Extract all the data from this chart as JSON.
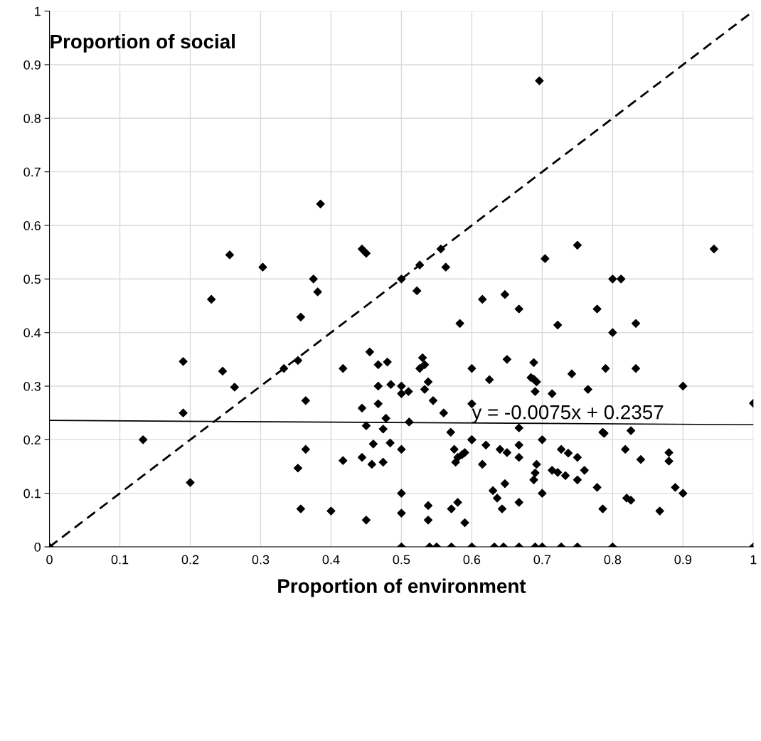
{
  "chart_data": {
    "type": "scatter",
    "xlabel": "Proportion of environment",
    "ylabel": "Proportion of social",
    "xlim": [
      0,
      1
    ],
    "ylim": [
      0,
      1
    ],
    "xticks": [
      0,
      0.1,
      0.2,
      0.3,
      0.4,
      0.5,
      0.6,
      0.7,
      0.8,
      0.9,
      1
    ],
    "yticks": [
      0,
      0.1,
      0.2,
      0.3,
      0.4,
      0.5,
      0.6,
      0.7,
      0.8,
      0.9,
      1
    ],
    "grid": true,
    "marker": "diamond",
    "legend": false,
    "series": [
      {
        "color": "#000000",
        "x": [
          0,
          0.133,
          0.19,
          0.19,
          0.2,
          0.23,
          0.246,
          0.256,
          0.263,
          0.303,
          0.333,
          0.353,
          0.353,
          0.357,
          0.357,
          0.364,
          0.364,
          0.375,
          0.381,
          0.385,
          0.4,
          0.417,
          0.417,
          0.444,
          0.444,
          0.444,
          0.45,
          0.45,
          0.45,
          0.455,
          0.458,
          0.46,
          0.467,
          0.467,
          0.467,
          0.474,
          0.474,
          0.478,
          0.48,
          0.484,
          0.485,
          0.5,
          0.5,
          0.5,
          0.5,
          0.5,
          0.5,
          0.5,
          0.51,
          0.511,
          0.522,
          0.526,
          0.526,
          0.53,
          0.533,
          0.533,
          0.538,
          0.538,
          0.538,
          0.54,
          0.545,
          0.55,
          0.556,
          0.56,
          0.563,
          0.57,
          0.571,
          0.571,
          0.575,
          0.577,
          0.58,
          0.58,
          0.583,
          0.586,
          0.59,
          0.59,
          0.6,
          0.6,
          0.6,
          0.6,
          0.6,
          0.615,
          0.615,
          0.62,
          0.625,
          0.63,
          0.632,
          0.636,
          0.64,
          0.643,
          0.645,
          0.647,
          0.647,
          0.65,
          0.65,
          0.667,
          0.667,
          0.667,
          0.667,
          0.667,
          0.667,
          0.684,
          0.688,
          0.688,
          0.688,
          0.69,
          0.69,
          0.692,
          0.692,
          0.69,
          0.696,
          0.7,
          0.7,
          0.7,
          0.704,
          0.714,
          0.714,
          0.722,
          0.722,
          0.727,
          0.727,
          0.733,
          0.737,
          0.742,
          0.75,
          0.75,
          0.75,
          0.75,
          0.76,
          0.765,
          0.778,
          0.778,
          0.786,
          0.786,
          0.788,
          0.79,
          0.8,
          0.8,
          0.8,
          0.812,
          0.818,
          0.82,
          0.826,
          0.826,
          0.833,
          0.833,
          0.84,
          0.867,
          0.88,
          0.88,
          0.889,
          0.9,
          0.9,
          0.944,
          1,
          1
        ],
        "values": [
          0,
          0.2,
          0.25,
          0.346,
          0.12,
          0.462,
          0.328,
          0.545,
          0.298,
          0.522,
          0.333,
          0.348,
          0.147,
          0.071,
          0.429,
          0.273,
          0.182,
          0.5,
          0.476,
          0.64,
          0.067,
          0.333,
          0.161,
          0.556,
          0.259,
          0.167,
          0.05,
          0.548,
          0.226,
          0.364,
          0.154,
          0.192,
          0.267,
          0.3,
          0.34,
          0.158,
          0.22,
          0.24,
          0.345,
          0.194,
          0.303,
          0.5,
          0.3,
          0.286,
          0.182,
          0.1,
          0.063,
          0,
          0.29,
          0.233,
          0.478,
          0.526,
          0.333,
          0.353,
          0.34,
          0.294,
          0.308,
          0.077,
          0.05,
          0,
          0.273,
          0,
          0.556,
          0.25,
          0.522,
          0.214,
          0.071,
          0,
          0.182,
          0.158,
          0.083,
          0.167,
          0.417,
          0.172,
          0.045,
          0.176,
          0.333,
          0.267,
          0.2,
          0.2,
          0,
          0.462,
          0.154,
          0.19,
          0.312,
          0.105,
          0,
          0.091,
          0.182,
          0.071,
          0,
          0.118,
          0.471,
          0.35,
          0.176,
          0.444,
          0.222,
          0.19,
          0.167,
          0.083,
          0,
          0.316,
          0.313,
          0.344,
          0.125,
          0.138,
          0.29,
          0.308,
          0.154,
          0,
          0.87,
          0.2,
          0.1,
          0,
          0.538,
          0.286,
          0.143,
          0.139,
          0.414,
          0.182,
          0,
          0.133,
          0.175,
          0.323,
          0.563,
          0.167,
          0.125,
          0,
          0.143,
          0.294,
          0.444,
          0.111,
          0.214,
          0.071,
          0.212,
          0.333,
          0.5,
          0.4,
          0,
          0.5,
          0.182,
          0.091,
          0.217,
          0.087,
          0.417,
          0.333,
          0.163,
          0.067,
          0.176,
          0.16,
          0.111,
          0.3,
          0.1,
          0.556,
          0.268,
          0
        ]
      },
      {
        "type": "line",
        "color": "#000000",
        "line_style": "dashed",
        "marker": "none",
        "x": [
          0,
          1
        ],
        "values": [
          0,
          1
        ]
      },
      {
        "type": "line",
        "color": "#000000",
        "line_style": "solid",
        "marker": "none",
        "x": [
          0,
          1
        ],
        "values": [
          0.236,
          0.228
        ]
      }
    ],
    "annotations": [
      {
        "text": "y = -0.0075x + 0.2357",
        "x": 0.6,
        "y": 0.231
      }
    ]
  }
}
